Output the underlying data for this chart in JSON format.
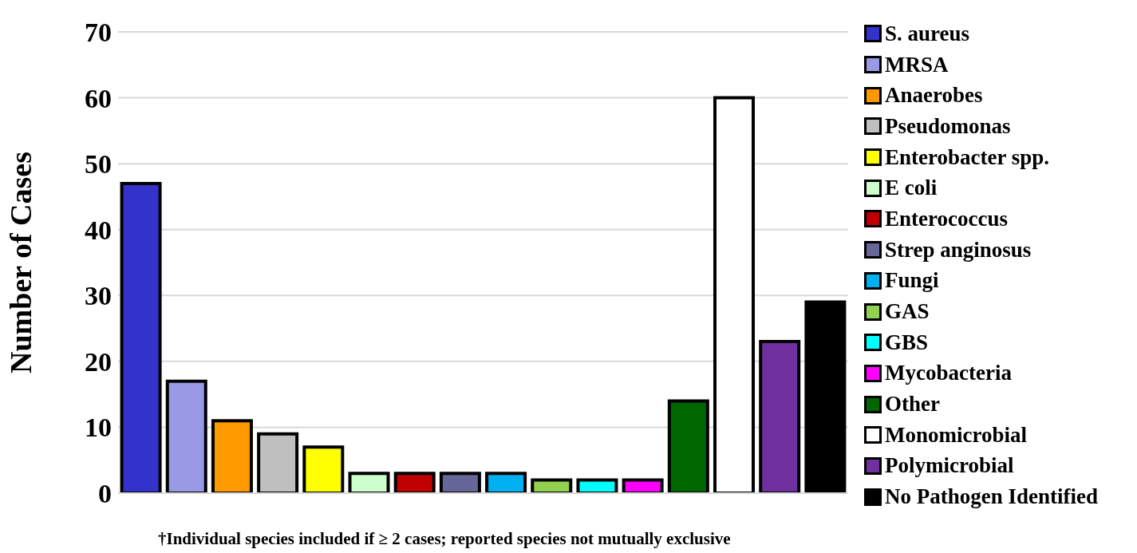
{
  "chart_data": {
    "type": "bar",
    "ylabel": "Number of Cases",
    "categories": [
      null,
      null,
      null,
      null,
      null,
      null,
      null,
      null,
      null,
      null,
      null,
      null,
      null,
      null,
      null,
      null
    ],
    "series": [
      {
        "name": "S. aureus",
        "color": "#3333cc",
        "values": [
          47,
          null,
          null,
          null,
          null,
          null,
          null,
          null,
          null,
          null,
          null,
          null,
          null,
          null,
          null,
          null
        ]
      },
      {
        "name": "MRSA",
        "color": "#9999e6",
        "values": [
          null,
          17,
          null,
          null,
          null,
          null,
          null,
          null,
          null,
          null,
          null,
          null,
          null,
          null,
          null,
          null
        ]
      },
      {
        "name": "Anaerobes",
        "color": "#ff9900",
        "values": [
          null,
          null,
          11,
          null,
          null,
          null,
          null,
          null,
          null,
          null,
          null,
          null,
          null,
          null,
          null,
          null
        ]
      },
      {
        "name": "Pseudomonas",
        "color": "#bfbfbf",
        "values": [
          null,
          null,
          null,
          9,
          null,
          null,
          null,
          null,
          null,
          null,
          null,
          null,
          null,
          null,
          null,
          null
        ]
      },
      {
        "name": "Enterobacter spp.",
        "color": "#ffff00",
        "values": [
          null,
          null,
          null,
          null,
          7,
          null,
          null,
          null,
          null,
          null,
          null,
          null,
          null,
          null,
          null,
          null
        ]
      },
      {
        "name": "E coli",
        "color": "#ccffcc",
        "values": [
          null,
          null,
          null,
          null,
          null,
          3,
          null,
          null,
          null,
          null,
          null,
          null,
          null,
          null,
          null,
          null
        ]
      },
      {
        "name": "Enterococcus",
        "color": "#c00000",
        "values": [
          null,
          null,
          null,
          null,
          null,
          null,
          3,
          null,
          null,
          null,
          null,
          null,
          null,
          null,
          null,
          null
        ]
      },
      {
        "name": "Strep anginosus",
        "color": "#666699",
        "values": [
          null,
          null,
          null,
          null,
          null,
          null,
          null,
          3,
          null,
          null,
          null,
          null,
          null,
          null,
          null,
          null
        ]
      },
      {
        "name": "Fungi",
        "color": "#00b0f0",
        "values": [
          null,
          null,
          null,
          null,
          null,
          null,
          null,
          null,
          3,
          null,
          null,
          null,
          null,
          null,
          null,
          null
        ]
      },
      {
        "name": "GAS",
        "color": "#92d050",
        "values": [
          null,
          null,
          null,
          null,
          null,
          null,
          null,
          null,
          null,
          2,
          null,
          null,
          null,
          null,
          null,
          null
        ]
      },
      {
        "name": "GBS",
        "color": "#00ffff",
        "values": [
          null,
          null,
          null,
          null,
          null,
          null,
          null,
          null,
          null,
          null,
          2,
          null,
          null,
          null,
          null,
          null
        ]
      },
      {
        "name": "Mycobacteria",
        "color": "#ff00ff",
        "values": [
          null,
          null,
          null,
          null,
          null,
          null,
          null,
          null,
          null,
          null,
          null,
          2,
          null,
          null,
          null,
          null
        ]
      },
      {
        "name": "Other",
        "color": "#006600",
        "values": [
          null,
          null,
          null,
          null,
          null,
          null,
          null,
          null,
          null,
          null,
          null,
          null,
          14,
          null,
          null,
          null
        ]
      },
      {
        "name": "Monomicrobial",
        "color": "#ffffff",
        "values": [
          null,
          null,
          null,
          null,
          null,
          null,
          null,
          null,
          null,
          null,
          null,
          null,
          null,
          60,
          null,
          null
        ]
      },
      {
        "name": "Polymicrobial",
        "color": "#7030a0",
        "values": [
          null,
          null,
          null,
          null,
          null,
          null,
          null,
          null,
          null,
          null,
          null,
          null,
          null,
          null,
          23,
          null
        ]
      },
      {
        "name": "No Pathogen Identified",
        "color": "#000000",
        "values": [
          null,
          null,
          null,
          null,
          null,
          null,
          null,
          null,
          null,
          null,
          null,
          null,
          null,
          null,
          null,
          29
        ]
      }
    ],
    "ylim": [
      0,
      70
    ],
    "yticks": [
      0,
      10,
      20,
      30,
      40,
      50,
      60,
      70
    ],
    "grid": "y",
    "legend": "right",
    "tick_labels": "y",
    "stacked": true,
    "annotations": [
      "†Individual species included if ≥ 2 cases; reported species not mutually exclusive"
    ]
  }
}
